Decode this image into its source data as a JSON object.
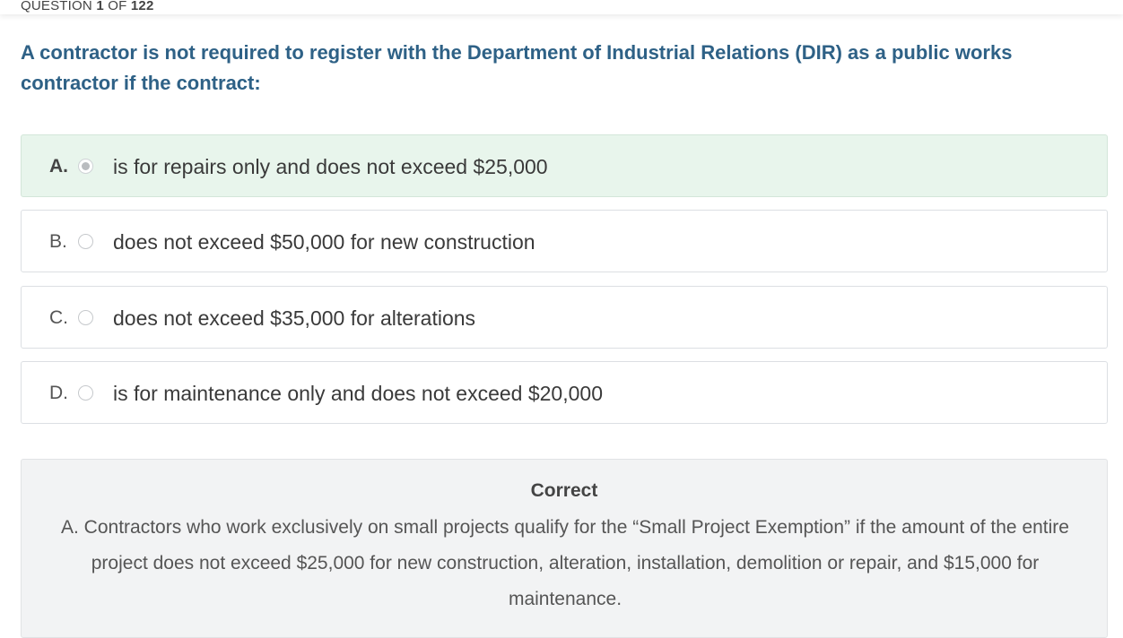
{
  "header": {
    "counter_prefix": "QUESTION",
    "counter_current": "1",
    "counter_of": "OF",
    "counter_total": "122"
  },
  "question": {
    "text": "A contractor is not required to register with the Department of Industrial Relations (DIR) as a public works contractor if the contract:"
  },
  "options": [
    {
      "letter": "A.",
      "text": "is for repairs only and does not exceed $25,000",
      "selected": true
    },
    {
      "letter": "B.",
      "text": "does not exceed $50,000 for new construction",
      "selected": false
    },
    {
      "letter": "C.",
      "text": "does not exceed $35,000 for alterations",
      "selected": false
    },
    {
      "letter": "D.",
      "text": "is for maintenance only and does not exceed $20,000",
      "selected": false
    }
  ],
  "feedback": {
    "title": "Correct",
    "text": "A. Contractors who work exclusively on small projects qualify for the “Small Project Exemption” if the amount of the entire project does not exceed $25,000 for new construction, alteration, installation, demolition or repair, and $15,000 for maintenance."
  },
  "colors": {
    "question_text": "#2e6186",
    "selected_background": "#e8f5ec",
    "feedback_background": "#f2f3f4"
  }
}
